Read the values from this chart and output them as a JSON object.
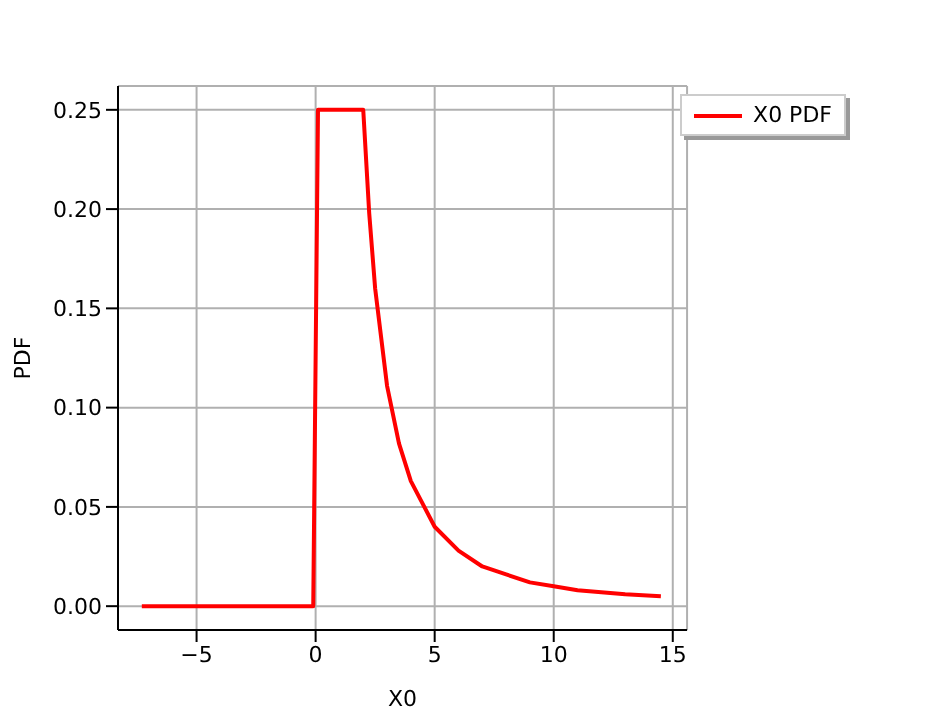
{
  "chart_data": {
    "type": "line",
    "xlabel": "X0",
    "ylabel": "PDF",
    "xlim": [
      -8.3,
      15.6
    ],
    "xticks": [
      {
        "value": -5,
        "label": "−5"
      },
      0,
      5,
      10,
      15
    ],
    "ylim": [
      -0.012,
      0.262
    ],
    "yticks": [
      {
        "value": 0,
        "label": "0.00"
      },
      {
        "value": 0.05,
        "label": "0.05"
      },
      {
        "value": 0.1,
        "label": "0.10"
      },
      {
        "value": 0.15,
        "label": "0.15"
      },
      {
        "value": 0.2,
        "label": "0.20"
      },
      {
        "value": 0.25,
        "label": "0.25"
      }
    ],
    "grid": true,
    "legend": "top right",
    "marker": "none",
    "line_style": "solid",
    "series": [
      {
        "name": "X0 PDF",
        "color": "#ff0000",
        "x": [
          -7.3,
          -0.1,
          0.1,
          2,
          2.25,
          2.5,
          3,
          3.5,
          4,
          5,
          6,
          7,
          8,
          9,
          10,
          11,
          12,
          13,
          14.5
        ],
        "values": [
          0,
          0,
          0.25,
          0.25,
          0.198,
          0.16,
          0.111,
          0.082,
          0.063,
          0.04,
          0.028,
          0.02,
          0.016,
          0.012,
          0.01,
          0.008,
          0.007,
          0.006,
          0.005
        ]
      }
    ]
  }
}
